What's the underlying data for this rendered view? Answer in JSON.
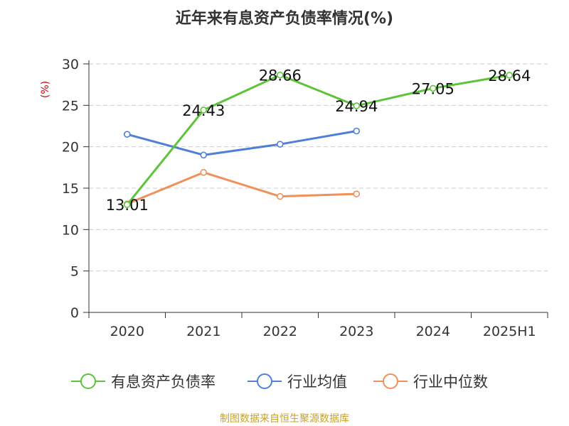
{
  "chart_data": {
    "type": "line",
    "title": "近年来有息资产负债率情况(%)",
    "ylabel": "(%)",
    "xlabel": "",
    "categories": [
      "2020",
      "2021",
      "2022",
      "2023",
      "2024",
      "2025H1"
    ],
    "ylim": [
      0,
      30
    ],
    "yticks": [
      0,
      5,
      10,
      15,
      20,
      25,
      30
    ],
    "grid": "horizontal dashed",
    "legend_position": "bottom",
    "series": [
      {
        "name": "有息资产负债率",
        "values": [
          13.01,
          24.43,
          28.66,
          24.94,
          27.05,
          28.64
        ],
        "labels": [
          "13.01",
          "24.43",
          "28.66",
          "24.94",
          "27.05",
          "28.64"
        ],
        "color": "#5dc43a"
      },
      {
        "name": "行业均值",
        "values": [
          21.5,
          19.0,
          20.3,
          21.9,
          null,
          null
        ],
        "color": "#4f7fd6"
      },
      {
        "name": "行业中位数",
        "values": [
          13.1,
          16.9,
          14.0,
          14.3,
          null,
          null
        ],
        "color": "#f0905a"
      }
    ]
  },
  "source_note": "制图数据来自恒生聚源数据库"
}
